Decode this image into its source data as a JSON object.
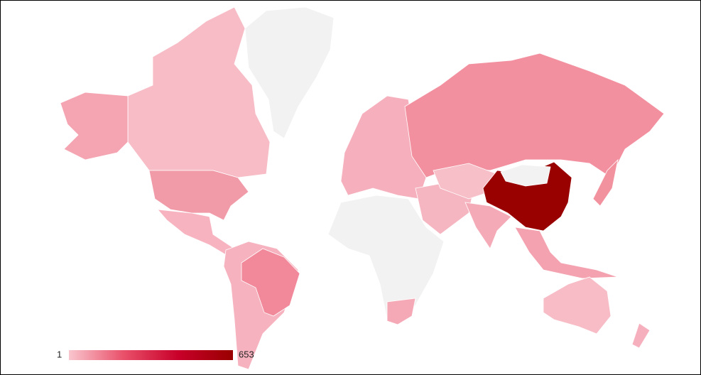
{
  "map": {
    "legend": {
      "min": 1,
      "max": 653,
      "colors": [
        "#f9c6ce",
        "#e9506a",
        "#c8002a",
        "#990000"
      ]
    }
  }
}
